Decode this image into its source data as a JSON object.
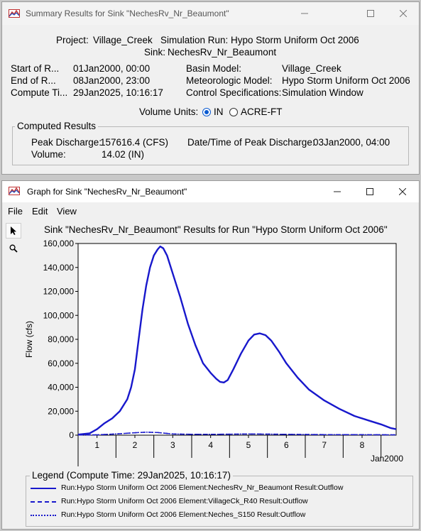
{
  "summary_window": {
    "title": "Summary Results for Sink \"NechesRv_Nr_Beaumont\"",
    "project_label": "Project:",
    "project_value": "Village_Creek",
    "sim_run_label": "Simulation Run:",
    "sim_run_value": "Hypo Storm Uniform Oct 2006",
    "sink_label": "Sink:",
    "sink_value": "NechesRv_Nr_Beaumont",
    "start_label": "Start of R...",
    "start_value": "01Jan2000, 00:00",
    "end_label": "End of R...",
    "end_value": "08Jan2000, 23:00",
    "compute_label": "Compute Ti...",
    "compute_value": "29Jan2025, 10:16:17",
    "basin_label": "Basin Model:",
    "basin_value": "Village_Creek",
    "met_label": "Meteorologic Model:",
    "met_value": "Hypo Storm Uniform Oct 2006",
    "control_label": "Control Specifications:",
    "control_value": "Simulation Window",
    "volume_units_label": "Volume Units:",
    "unit_in": "IN",
    "unit_acre_ft": "ACRE-FT",
    "selected_unit": "IN",
    "computed_results_title": "Computed Results",
    "peak_discharge_label": "Peak Discharge:",
    "peak_discharge_value": "157616.4 (CFS)",
    "peak_time_label": "Date/Time of Peak Discharge:",
    "peak_time_value": "03Jan2000, 04:00",
    "volume_label": "Volume:",
    "volume_value": "14.02 (IN)"
  },
  "graph_window": {
    "title": "Graph for Sink \"NechesRv_Nr_Beaumont\"",
    "menu": [
      "File",
      "Edit",
      "View"
    ],
    "tools": [
      "pointer-tool",
      "zoom-tool"
    ],
    "legend_title": "Legend (Compute Time: 29Jan2025, 10:16:17)",
    "legend": [
      {
        "label": "Run:Hypo Storm Uniform Oct 2006 Element:NechesRv_Nr_Beaumont Result:Outflow",
        "style": "solid"
      },
      {
        "label": "Run:Hypo Storm Uniform Oct 2006 Element:VillageCk_R40 Result:Outflow",
        "style": "dashed"
      },
      {
        "label": "Run:Hypo Storm Uniform Oct 2006 Element:Neches_S150 Result:Outflow",
        "style": "dotted"
      }
    ]
  },
  "colors": {
    "series": "#1818cc",
    "radio_accent": "#0a5ad0"
  },
  "chart_data": {
    "type": "line",
    "title": "Sink \"NechesRv_Nr_Beaumont\" Results for Run \"Hypo Storm Uniform Oct 2006\"",
    "ylabel": "Flow (cfs)",
    "xlabel": "Jan2000",
    "xlim": [
      0.5,
      8.9
    ],
    "ylim": [
      0,
      160000
    ],
    "x_ticks": [
      "1",
      "2",
      "3",
      "4",
      "5",
      "6",
      "7",
      "8"
    ],
    "y_ticks": [
      "0",
      "20,000",
      "40,000",
      "60,000",
      "80,000",
      "100,000",
      "120,000",
      "140,000",
      "160,000"
    ],
    "grid": false,
    "legend_position": "bottom",
    "series": [
      {
        "name": "Run:Hypo Storm Uniform Oct 2006 Element:NechesRv_Nr_Beaumont Result:Outflow",
        "style": "solid",
        "x": [
          0.5,
          0.8,
          1.0,
          1.2,
          1.4,
          1.6,
          1.8,
          1.9,
          2.0,
          2.1,
          2.2,
          2.3,
          2.4,
          2.5,
          2.6,
          2.67,
          2.75,
          2.85,
          3.0,
          3.2,
          3.4,
          3.6,
          3.8,
          4.0,
          4.15,
          4.25,
          4.35,
          4.45,
          4.6,
          4.8,
          5.0,
          5.15,
          5.3,
          5.45,
          5.6,
          5.8,
          6.0,
          6.3,
          6.6,
          7.0,
          7.4,
          7.8,
          8.2,
          8.5,
          8.75,
          8.9
        ],
        "y": [
          500,
          1500,
          5000,
          10000,
          14000,
          20000,
          30000,
          40000,
          55000,
          80000,
          105000,
          125000,
          140000,
          150000,
          155000,
          157600,
          156000,
          150000,
          135000,
          115000,
          93000,
          75000,
          60000,
          52000,
          47000,
          44500,
          44000,
          46000,
          55000,
          68000,
          79000,
          84000,
          85000,
          83500,
          79000,
          70000,
          60000,
          48000,
          38000,
          29000,
          22000,
          16000,
          12000,
          9000,
          6000,
          5000
        ]
      },
      {
        "name": "Run:Hypo Storm Uniform Oct 2006 Element:VillageCk_R40 Result:Outflow",
        "style": "dashed",
        "x": [
          0.5,
          1.0,
          1.5,
          2.0,
          2.3,
          2.6,
          3.0,
          3.5,
          4.0,
          4.5,
          5.0,
          5.5,
          6.0,
          7.0,
          8.0,
          8.9
        ],
        "y": [
          200,
          300,
          1000,
          2000,
          2500,
          2200,
          1000,
          700,
          700,
          800,
          1000,
          900,
          700,
          500,
          400,
          300
        ]
      },
      {
        "name": "Run:Hypo Storm Uniform Oct 2006 Element:Neches_S150 Result:Outflow",
        "style": "dotted",
        "x": [
          0.5,
          1.0,
          1.5,
          2.0,
          2.3,
          2.6,
          3.0,
          3.5,
          4.0,
          4.5,
          5.0,
          5.5,
          6.0,
          7.0,
          8.0,
          8.9
        ],
        "y": [
          200,
          300,
          1000,
          2000,
          2500,
          2200,
          1000,
          700,
          700,
          800,
          1000,
          900,
          700,
          500,
          400,
          300
        ]
      }
    ]
  }
}
